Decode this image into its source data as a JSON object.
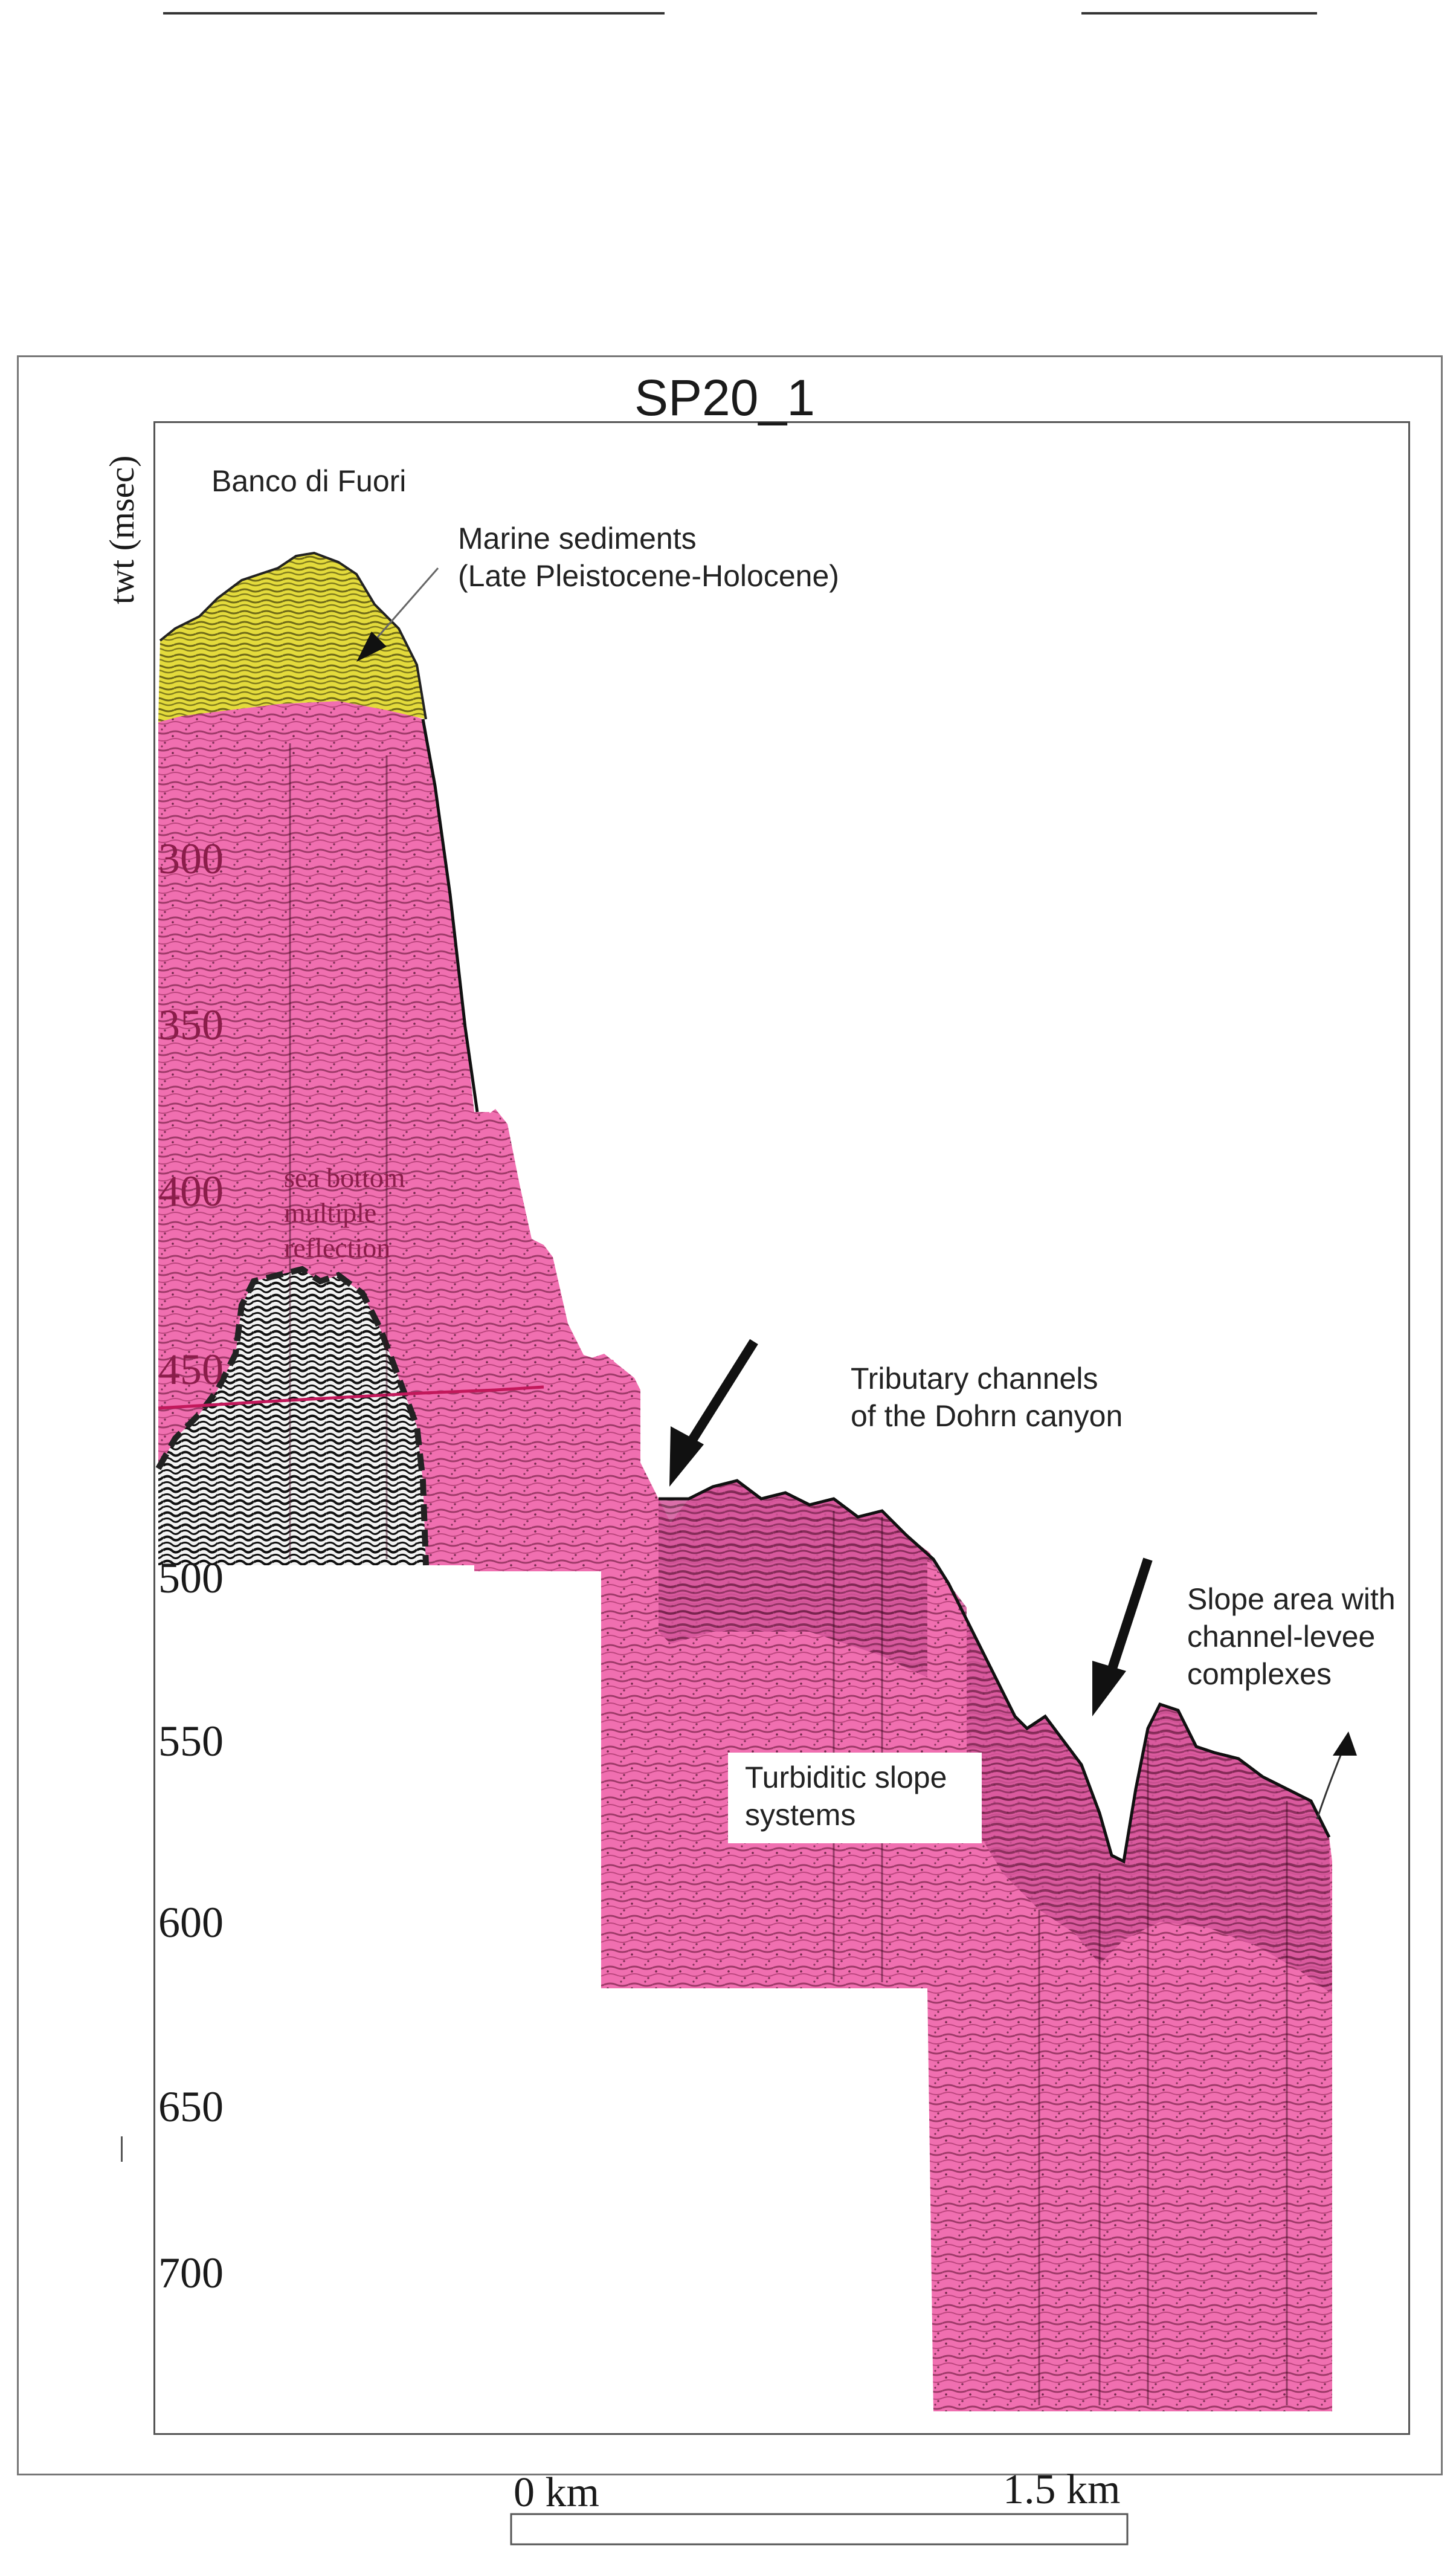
{
  "figure": {
    "title": "SP20_1",
    "y_axis_label": "twt (msec)",
    "y_ticks": [
      "300",
      "350",
      "400",
      "450",
      "500",
      "550",
      "600",
      "650",
      "700"
    ],
    "scale_bar": {
      "start_label": "0 km",
      "end_label": "1.5 km"
    },
    "labels": {
      "bank": "Banco di Fuori",
      "marine_sediments": [
        "Marine sediments",
        "(Late Pleistocene-Holocene)"
      ],
      "multiple": [
        "sea bottom",
        "multiple",
        "reflection"
      ],
      "tributary": [
        "Tributary channels",
        "of the Dohrn canyon"
      ],
      "slope_area": [
        "Slope area with",
        "channel-levee",
        "complexes"
      ],
      "turbiditic": [
        "Turbiditic slope",
        "systems"
      ]
    },
    "colors": {
      "seismic_pink": "#f06fb0",
      "marine_sediment_yellow": "#e4db3c",
      "frame": "#555555",
      "arrow": "#111111"
    }
  }
}
